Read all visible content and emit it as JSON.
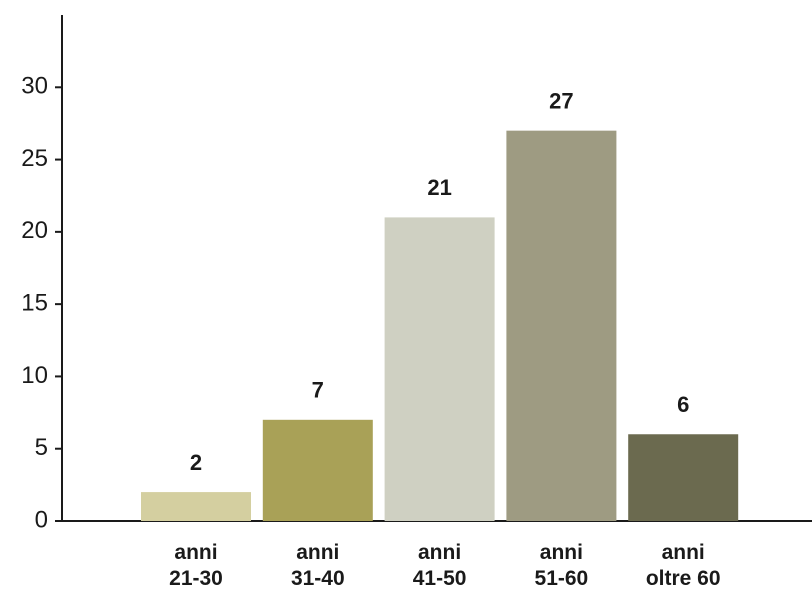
{
  "chart_data": {
    "type": "bar",
    "categories": [
      "anni\n21-30",
      "anni\n31-40",
      "anni\n41-50",
      "anni\n51-60",
      "anni\noltre 60"
    ],
    "values": [
      2,
      7,
      21,
      27,
      6
    ],
    "colors": [
      "#d4cfa0",
      "#a9a157",
      "#cfd0c2",
      "#9e9b82",
      "#6b6a4f"
    ],
    "ylim": [
      0,
      35
    ],
    "yticks": [
      0,
      5,
      10,
      15,
      20,
      25,
      30
    ],
    "grid": false
  }
}
